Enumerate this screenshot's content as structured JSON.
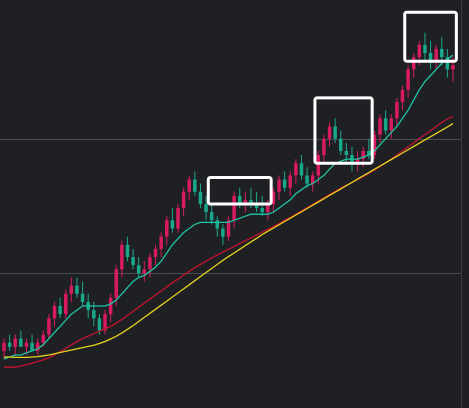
{
  "colors": {
    "background": "#1f2024",
    "grid": "#4a4b50",
    "right_axis_border": "#3a3b40",
    "up_candle": "#d81b60",
    "down_candle": "#1aa88c",
    "ma_short": "#1fc4a5",
    "ma_mid": "#c4122f",
    "ma_long": "#e6d21e",
    "highlight_box": "#ffffff"
  },
  "chart_data": {
    "type": "candlestick",
    "title": "",
    "xlabel": "",
    "ylabel": "",
    "grid": true,
    "ylim": [
      0,
      100
    ],
    "gridlines_y": [
      33,
      66
    ],
    "series": [
      {
        "kind": "candles",
        "ohlc": [
          [
            14,
            17,
            12,
            16
          ],
          [
            16,
            18,
            14,
            15
          ],
          [
            15,
            18,
            13,
            17
          ],
          [
            17,
            19,
            15,
            15
          ],
          [
            15,
            17,
            13,
            16
          ],
          [
            16,
            18,
            14,
            14
          ],
          [
            14,
            17,
            13,
            16
          ],
          [
            16,
            19,
            15,
            18
          ],
          [
            18,
            23,
            17,
            22
          ],
          [
            22,
            26,
            20,
            25
          ],
          [
            25,
            27,
            22,
            23
          ],
          [
            23,
            29,
            22,
            28
          ],
          [
            28,
            32,
            26,
            30
          ],
          [
            30,
            32,
            27,
            28
          ],
          [
            28,
            31,
            25,
            26
          ],
          [
            26,
            28,
            22,
            24
          ],
          [
            24,
            26,
            20,
            22
          ],
          [
            22,
            23,
            18,
            19
          ],
          [
            19,
            24,
            18,
            23
          ],
          [
            23,
            28,
            21,
            27
          ],
          [
            27,
            35,
            25,
            34
          ],
          [
            34,
            41,
            32,
            40
          ],
          [
            40,
            42,
            36,
            37
          ],
          [
            37,
            39,
            34,
            35
          ],
          [
            35,
            37,
            32,
            33
          ],
          [
            33,
            36,
            31,
            34
          ],
          [
            34,
            38,
            32,
            37
          ],
          [
            37,
            40,
            35,
            39
          ],
          [
            39,
            43,
            37,
            42
          ],
          [
            42,
            47,
            40,
            46
          ],
          [
            46,
            49,
            43,
            44
          ],
          [
            44,
            50,
            43,
            49
          ],
          [
            49,
            54,
            47,
            53
          ],
          [
            53,
            57,
            51,
            56
          ],
          [
            56,
            58,
            52,
            53
          ],
          [
            53,
            55,
            49,
            50
          ],
          [
            50,
            52,
            46,
            48
          ],
          [
            48,
            50,
            45,
            46
          ],
          [
            46,
            47,
            42,
            44
          ],
          [
            44,
            45,
            40,
            42
          ],
          [
            42,
            47,
            41,
            46
          ],
          [
            46,
            53,
            44,
            52
          ],
          [
            52,
            54,
            49,
            50
          ],
          [
            50,
            53,
            48,
            51
          ],
          [
            51,
            54,
            49,
            50
          ],
          [
            50,
            53,
            48,
            49
          ],
          [
            49,
            52,
            47,
            48
          ],
          [
            48,
            51,
            46,
            50
          ],
          [
            50,
            54,
            48,
            53
          ],
          [
            53,
            57,
            51,
            56
          ],
          [
            56,
            58,
            53,
            54
          ],
          [
            54,
            58,
            52,
            57
          ],
          [
            57,
            61,
            55,
            60
          ],
          [
            60,
            62,
            56,
            57
          ],
          [
            57,
            59,
            54,
            55
          ],
          [
            55,
            58,
            53,
            57
          ],
          [
            57,
            63,
            55,
            62
          ],
          [
            62,
            67,
            60,
            66
          ],
          [
            66,
            70,
            64,
            69
          ],
          [
            69,
            71,
            65,
            66
          ],
          [
            66,
            68,
            62,
            63
          ],
          [
            63,
            65,
            60,
            62
          ],
          [
            62,
            64,
            58,
            60
          ],
          [
            60,
            63,
            58,
            61
          ],
          [
            61,
            64,
            59,
            63
          ],
          [
            63,
            66,
            61,
            62
          ],
          [
            62,
            68,
            61,
            67
          ],
          [
            67,
            72,
            65,
            71
          ],
          [
            71,
            73,
            67,
            68
          ],
          [
            68,
            72,
            66,
            71
          ],
          [
            71,
            76,
            69,
            75
          ],
          [
            75,
            79,
            73,
            78
          ],
          [
            78,
            84,
            76,
            83
          ],
          [
            83,
            87,
            81,
            86
          ],
          [
            86,
            90,
            84,
            89
          ],
          [
            89,
            92,
            85,
            87
          ],
          [
            87,
            90,
            83,
            85
          ],
          [
            85,
            89,
            83,
            88
          ],
          [
            88,
            91,
            84,
            86
          ],
          [
            86,
            88,
            81,
            83
          ],
          [
            83,
            86,
            80,
            84
          ]
        ]
      },
      {
        "kind": "line",
        "role": "ma_short",
        "values": [
          12,
          12.5,
          13,
          13,
          13.5,
          14,
          14.5,
          15.5,
          17,
          18.5,
          20,
          21.5,
          23,
          24,
          25,
          25,
          25,
          25,
          25,
          25.5,
          26.5,
          28,
          29.5,
          31,
          32,
          32.5,
          33.5,
          34.5,
          36,
          38,
          40,
          41.5,
          43,
          44,
          45,
          45.5,
          45.5,
          45.5,
          45.5,
          45.5,
          45.5,
          46,
          46.5,
          47,
          47.5,
          47.5,
          47.5,
          47.5,
          48,
          49,
          50,
          51,
          52.5,
          53.5,
          54.5,
          55,
          56,
          57,
          58.5,
          60,
          60.5,
          61,
          61,
          61,
          61.5,
          62,
          63,
          64.5,
          66,
          67.5,
          69,
          71,
          73,
          75.5,
          78,
          80,
          81.5,
          83,
          84.5,
          85.5,
          86.5
        ]
      },
      {
        "kind": "line",
        "role": "ma_mid",
        "values": [
          10,
          10,
          10,
          10.3,
          10.6,
          11,
          11.4,
          11.8,
          12.3,
          13,
          13.8,
          14.6,
          15.5,
          16.3,
          17,
          17.6,
          18.2,
          18.8,
          19.4,
          20,
          20.8,
          21.7,
          22.7,
          23.7,
          24.7,
          25.7,
          26.7,
          27.7,
          28.7,
          29.7,
          30.7,
          31.6,
          32.6,
          33.5,
          34.4,
          35.2,
          36,
          36.8,
          37.5,
          38.2,
          38.9,
          39.6,
          40.3,
          41,
          41.7,
          42.4,
          43.1,
          43.8,
          44.5,
          45.2,
          46,
          46.7,
          47.5,
          48.3,
          49.1,
          49.9,
          50.7,
          51.5,
          52.3,
          53.1,
          53.9,
          54.6,
          55.3,
          56,
          56.7,
          57.5,
          58.3,
          59.2,
          60.1,
          61,
          62,
          63,
          64,
          65,
          66,
          67,
          68,
          69,
          70,
          70.8,
          71.5
        ]
      },
      {
        "kind": "line",
        "role": "ma_long",
        "values": [
          12.5,
          12.5,
          12.4,
          12.4,
          12.4,
          12.5,
          12.6,
          12.8,
          13,
          13.3,
          13.6,
          13.9,
          14.2,
          14.5,
          14.8,
          15.1,
          15.4,
          15.8,
          16.3,
          16.9,
          17.6,
          18.4,
          19.3,
          20.2,
          21.2,
          22.2,
          23.2,
          24.2,
          25.2,
          26.2,
          27.2,
          28.2,
          29.2,
          30.2,
          31.2,
          32.2,
          33.2,
          34.2,
          35.2,
          36.2,
          37.1,
          38,
          38.9,
          39.8,
          40.7,
          41.6,
          42.5,
          43.3,
          44.1,
          44.9,
          45.7,
          46.5,
          47.3,
          48.1,
          48.9,
          49.7,
          50.5,
          51.3,
          52.1,
          52.9,
          53.7,
          54.5,
          55.3,
          56.1,
          56.9,
          57.7,
          58.5,
          59.3,
          60.1,
          60.9,
          61.7,
          62.5,
          63.3,
          64.1,
          64.9,
          65.7,
          66.5,
          67.3,
          68.1,
          68.9,
          69.7
        ]
      }
    ],
    "annotations": [
      {
        "kind": "box",
        "from_index": 37,
        "to_index": 47,
        "ylim": [
          50,
          56.5
        ]
      },
      {
        "kind": "box",
        "from_index": 56,
        "to_index": 65,
        "ylim": [
          60,
          76
        ]
      },
      {
        "kind": "box",
        "from_index": 72,
        "to_index": 80,
        "ylim": [
          85,
          97
        ]
      }
    ]
  }
}
